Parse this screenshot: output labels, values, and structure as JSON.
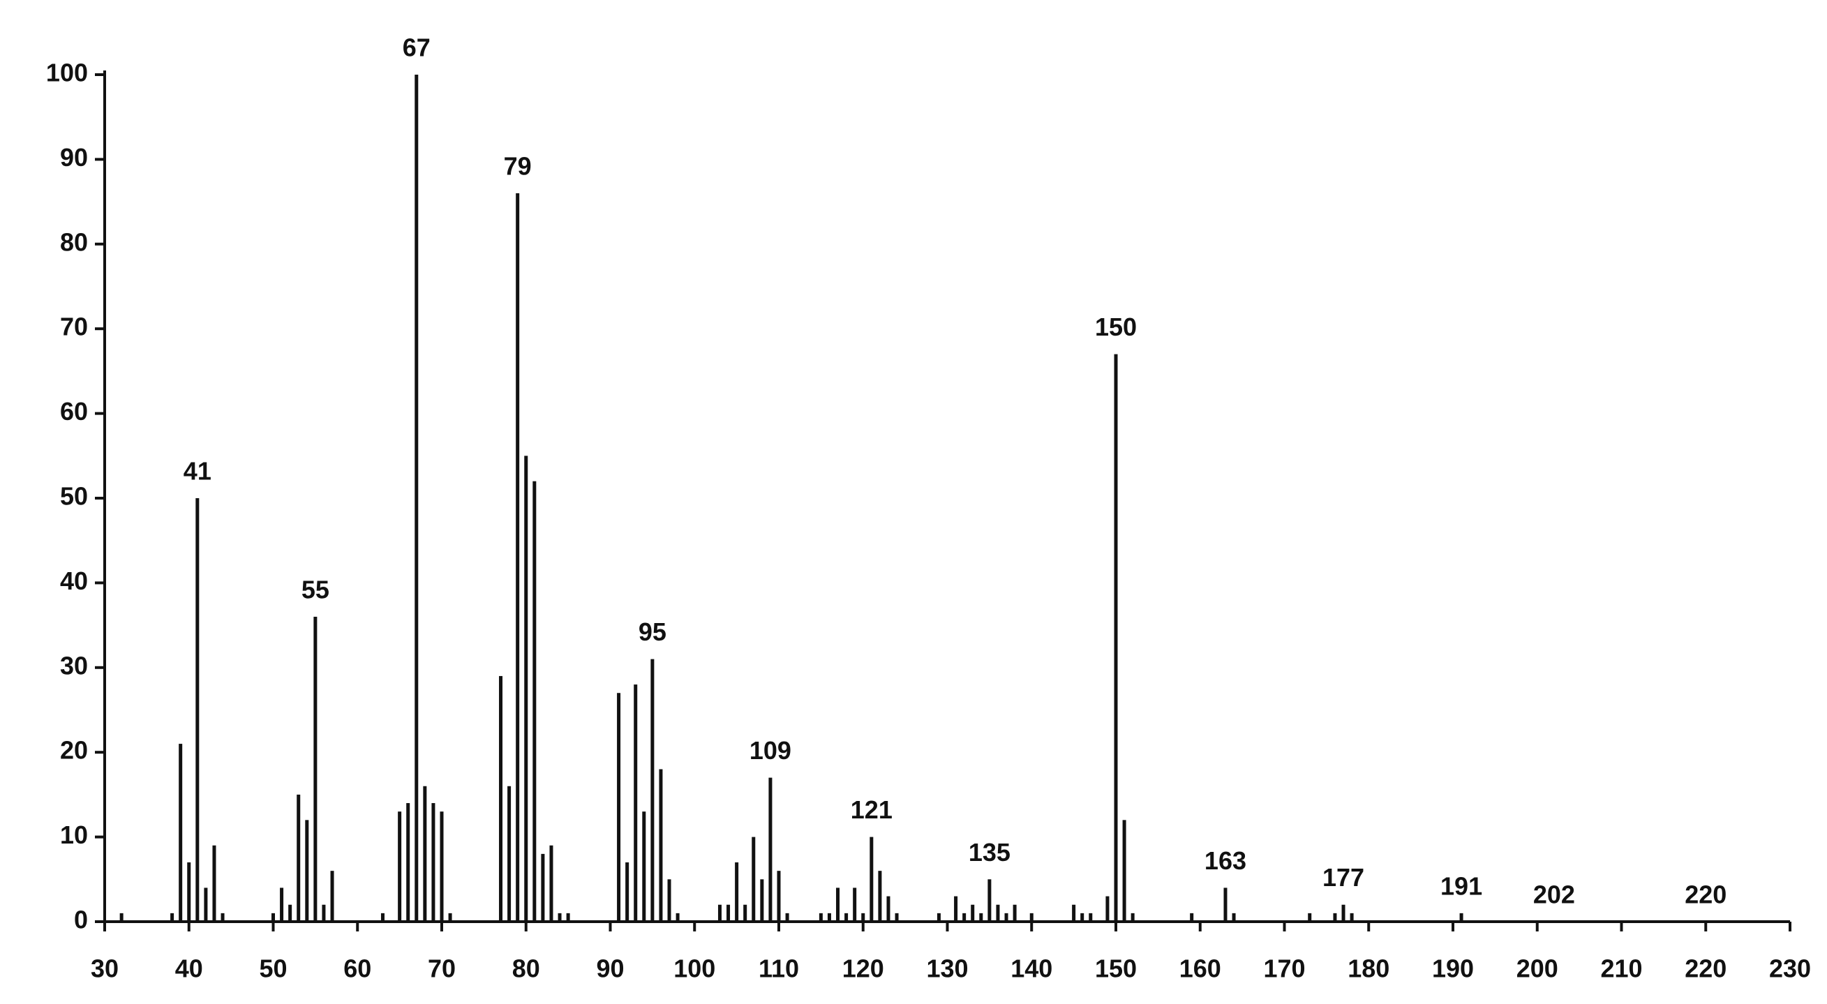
{
  "chart_data": {
    "type": "bar",
    "color": "#111111",
    "x": [
      32,
      38,
      39,
      40,
      41,
      42,
      43,
      44,
      50,
      51,
      52,
      53,
      54,
      55,
      56,
      57,
      63,
      65,
      66,
      67,
      68,
      69,
      70,
      71,
      77,
      78,
      79,
      80,
      81,
      82,
      83,
      84,
      85,
      91,
      92,
      93,
      94,
      95,
      96,
      97,
      98,
      103,
      104,
      105,
      106,
      107,
      108,
      109,
      110,
      111,
      115,
      116,
      117,
      118,
      119,
      120,
      121,
      122,
      123,
      124,
      129,
      131,
      132,
      133,
      134,
      135,
      136,
      137,
      138,
      140,
      145,
      146,
      147,
      149,
      150,
      151,
      152,
      159,
      163,
      164,
      173,
      176,
      177,
      178,
      191
    ],
    "values": [
      1,
      1,
      21,
      7,
      50,
      4,
      9,
      1,
      1,
      4,
      2,
      15,
      12,
      36,
      2,
      6,
      1,
      13,
      14,
      100,
      16,
      14,
      13,
      1,
      29,
      16,
      86,
      55,
      52,
      8,
      9,
      1,
      1,
      27,
      7,
      28,
      13,
      31,
      18,
      5,
      1,
      2,
      2,
      7,
      2,
      10,
      5,
      17,
      6,
      1,
      1,
      1,
      4,
      1,
      4,
      1,
      10,
      6,
      3,
      1,
      1,
      3,
      1,
      2,
      1,
      5,
      2,
      1,
      2,
      1,
      2,
      1,
      1,
      3,
      67,
      12,
      1,
      1,
      4,
      1,
      1,
      1,
      2,
      1,
      1
    ],
    "peak_labels": [
      41,
      55,
      67,
      79,
      95,
      109,
      121,
      135,
      150,
      163,
      177,
      191,
      202,
      220
    ],
    "xlim": [
      30,
      230
    ],
    "xticks": [
      30,
      40,
      50,
      60,
      70,
      80,
      90,
      100,
      110,
      120,
      130,
      140,
      150,
      160,
      170,
      180,
      190,
      200,
      210,
      220,
      230
    ],
    "ylim": [
      0,
      100
    ],
    "yticks": [
      0,
      10,
      20,
      30,
      40,
      50,
      60,
      70,
      80,
      90,
      100
    ],
    "grid": false
  }
}
